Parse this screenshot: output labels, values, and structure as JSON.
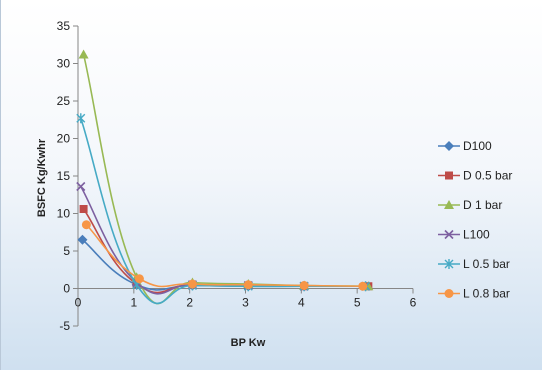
{
  "chart_data": {
    "type": "line",
    "xlabel": "BP Kw",
    "ylabel": "BSFC Kg/Kwhr",
    "xlim": [
      0,
      6
    ],
    "ylim": [
      -5,
      35
    ],
    "xticks": [
      "0",
      "1",
      "2",
      "3",
      "4",
      "5",
      "6"
    ],
    "yticks": [
      "-5",
      "0",
      "5",
      "10",
      "15",
      "20",
      "25",
      "30",
      "35"
    ],
    "smooth": true,
    "grid": false,
    "legend_position": "right",
    "series": [
      {
        "name": "D100",
        "color": "#4a7ebb",
        "marker": "diamond",
        "x": [
          0.08,
          1.05,
          2.05,
          3.05,
          4.05,
          5.15
        ],
        "y": [
          6.5,
          0.5,
          0.4,
          0.3,
          0.3,
          0.3
        ]
      },
      {
        "name": "D 0.5 bar",
        "color": "#be4b48",
        "marker": "square",
        "x": [
          0.1,
          1.05,
          2.05,
          3.05,
          4.05,
          5.2
        ],
        "y": [
          10.6,
          0.6,
          0.5,
          0.4,
          0.3,
          0.3
        ]
      },
      {
        "name": "D 1 bar",
        "color": "#98b954",
        "marker": "triangle",
        "x": [
          0.1,
          1.05,
          2.05,
          3.05,
          4.05,
          5.2
        ],
        "y": [
          31.2,
          1.5,
          0.8,
          0.6,
          0.4,
          0.3
        ]
      },
      {
        "name": "L100",
        "color": "#7d60a0",
        "marker": "x",
        "x": [
          0.05,
          1.05,
          2.05,
          3.05,
          4.05,
          5.15
        ],
        "y": [
          13.6,
          0.8,
          0.5,
          0.4,
          0.3,
          0.3
        ]
      },
      {
        "name": "L 0.5 bar",
        "color": "#46aac5",
        "marker": "star",
        "x": [
          0.05,
          1.05,
          2.05,
          3.05,
          4.05,
          5.15
        ],
        "y": [
          22.7,
          0.5,
          0.4,
          0.3,
          0.3,
          0.3
        ]
      },
      {
        "name": "L 0.8 bar",
        "color": "#f79646",
        "marker": "circle",
        "x": [
          0.15,
          1.1,
          2.05,
          3.05,
          4.05,
          5.1
        ],
        "y": [
          8.5,
          1.3,
          0.6,
          0.5,
          0.4,
          0.3
        ]
      }
    ]
  }
}
